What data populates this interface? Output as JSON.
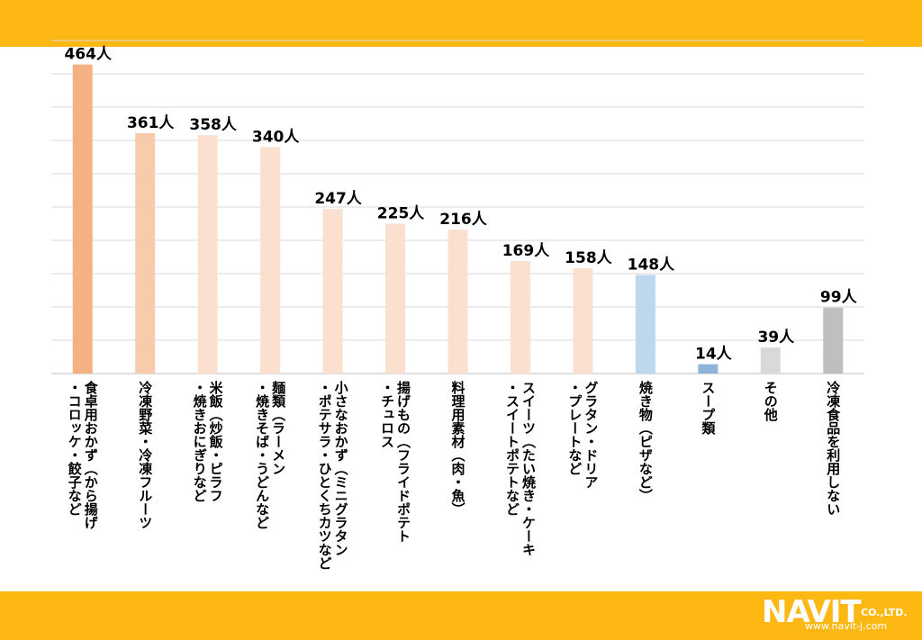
{
  "colors": {
    "band": "#FDB813",
    "grid": "#d9d9d9",
    "axis": "#bfbfbf",
    "text": "#000000"
  },
  "logo": {
    "brand": "NAVIT",
    "company_suffix": "CO.,LTD.",
    "url": "www.navit-j.com"
  },
  "chart_data": {
    "type": "bar",
    "title": "",
    "xlabel": "",
    "ylabel": "",
    "ylim": [
      0,
      500
    ],
    "grid": true,
    "value_suffix": "人",
    "categories": [
      [
        "・コロッケ・餃子など",
        "食卓用おかず（から揚げ"
      ],
      [
        "冷凍野菜・冷凍フルーツ"
      ],
      [
        "・焼きおにぎりなど",
        "米飯（炒飯・ピラフ"
      ],
      [
        "・焼きそば・うどんなど",
        "麺類（ラーメン"
      ],
      [
        "・ポテサラ・ひとくちカツなど",
        "小さなおかず（ミニグラタン"
      ],
      [
        "・チュロス",
        "揚げもの（フライドポテト"
      ],
      [
        "料理用素材（肉・魚）"
      ],
      [
        "・スイートポテトなど",
        "スイーツ（たい焼き・ケーキ"
      ],
      [
        "・プレートなど",
        "グラタン・ドリア"
      ],
      [
        "焼き物（ピザなど）"
      ],
      [
        "スープ類"
      ],
      [
        "その他"
      ],
      [
        "冷凍食品を利用しない"
      ]
    ],
    "values": [
      464,
      361,
      358,
      340,
      247,
      225,
      216,
      169,
      158,
      148,
      14,
      39,
      99
    ],
    "value_labels": [
      "464人",
      "361人",
      "358人",
      "340人",
      "247人",
      "225人",
      "216人",
      "169人",
      "158人",
      "148人",
      "14人",
      "39人",
      "99人"
    ],
    "bar_colors": [
      "#F4B183",
      "#F8CBAD",
      "#FBE0D0",
      "#FBE0D0",
      "#FBE0D0",
      "#FBE0D0",
      "#FBE0D0",
      "#FBE0D0",
      "#FBE0D0",
      "#BDD7EE",
      "#8FB4DA",
      "#D9D9D9",
      "#BFBFBF"
    ]
  }
}
